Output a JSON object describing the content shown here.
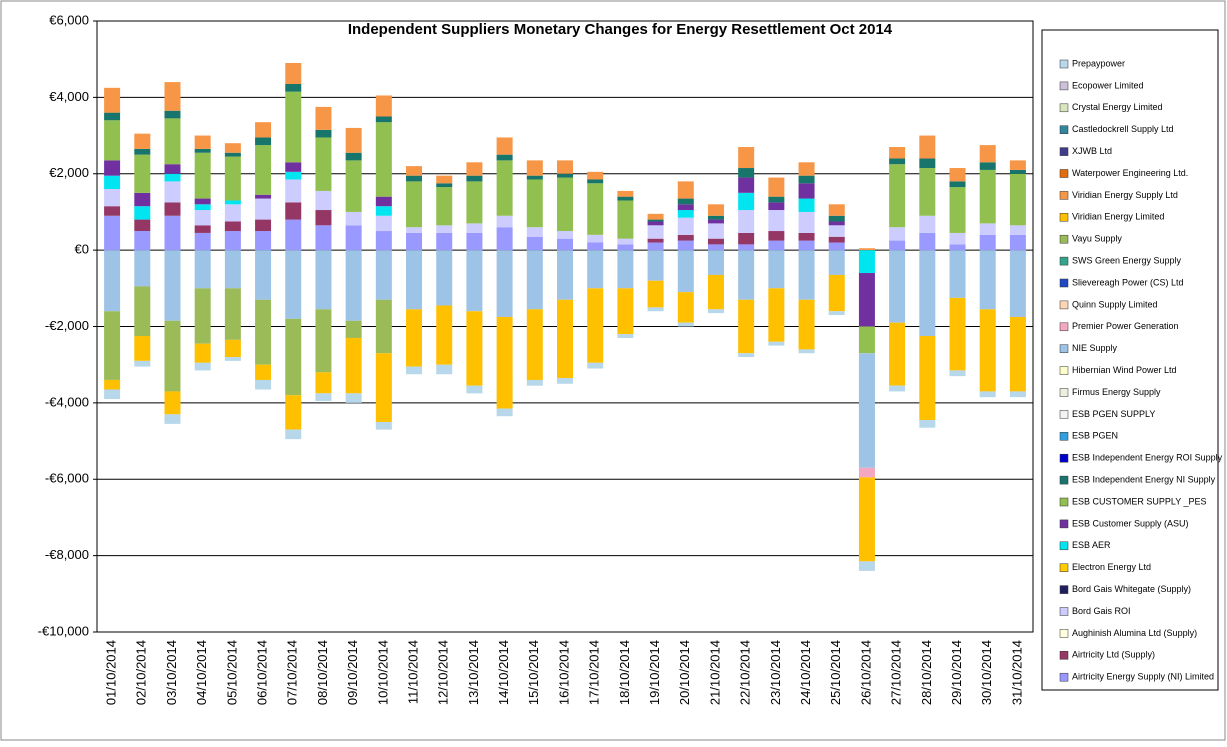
{
  "chart_data": {
    "type": "stacked-bar",
    "title": "Independent Suppliers Monetary Changes for Energy Resettlement Oct 2014",
    "categories": [
      "01/10/2014",
      "02/10/2014",
      "03/10/2014",
      "04/10/2014",
      "05/10/2014",
      "06/10/2014",
      "07/10/2014",
      "08/10/2014",
      "09/10/2014",
      "10/10/2014",
      "11/10/2014",
      "12/10/2014",
      "13/10/2014",
      "14/10/2014",
      "15/10/2014",
      "16/10/2014",
      "17/10/2014",
      "18/10/2014",
      "19/10/2014",
      "20/10/2014",
      "21/10/2014",
      "22/10/2014",
      "23/10/2014",
      "24/10/2014",
      "25/10/2014",
      "26/10/2014",
      "27/10/2014",
      "28/10/2014",
      "29/10/2014",
      "30/10/2014",
      "31/10/2014"
    ],
    "ylim": [
      -10000,
      6000
    ],
    "yticks": [
      {
        "value": -10000,
        "label": "-€10,000"
      },
      {
        "value": -8000,
        "label": "-€8,000"
      },
      {
        "value": -6000,
        "label": "-€6,000"
      },
      {
        "value": -4000,
        "label": "-€4,000"
      },
      {
        "value": -2000,
        "label": "-€2,000"
      },
      {
        "value": 0,
        "label": "€0"
      },
      {
        "value": 2000,
        "label": "€2,000"
      },
      {
        "value": 4000,
        "label": "€4,000"
      },
      {
        "value": 6000,
        "label": "€6,000"
      }
    ],
    "grid": true,
    "legend": "right",
    "series": [
      {
        "name": "Prepaypower",
        "color": "#b7d7ea",
        "values": [
          -250,
          -150,
          -250,
          -200,
          -100,
          -250,
          -250,
          -200,
          -250,
          -200,
          -200,
          -250,
          -200,
          -200,
          -150,
          -150,
          -150,
          -100,
          -100,
          -100,
          -100,
          -100,
          -100,
          -100,
          -100,
          -250,
          -150,
          -200,
          -150,
          -150,
          -150
        ]
      },
      {
        "name": "Ecopower Limited",
        "color": "#ccc0da",
        "values": [
          0,
          0,
          0,
          0,
          0,
          0,
          0,
          0,
          0,
          0,
          0,
          0,
          0,
          0,
          0,
          0,
          0,
          0,
          0,
          0,
          0,
          0,
          0,
          0,
          0,
          0,
          0,
          0,
          0,
          0,
          0
        ]
      },
      {
        "name": "Crystal Energy Limited",
        "color": "#d7e4bd",
        "values": [
          0,
          0,
          0,
          0,
          0,
          0,
          0,
          0,
          0,
          0,
          0,
          0,
          0,
          0,
          0,
          0,
          0,
          0,
          0,
          0,
          0,
          0,
          0,
          0,
          0,
          0,
          0,
          0,
          0,
          0,
          0
        ]
      },
      {
        "name": "Castledockrell Supply Ltd",
        "color": "#31859c",
        "values": [
          0,
          0,
          0,
          0,
          0,
          0,
          0,
          0,
          0,
          0,
          0,
          0,
          0,
          0,
          0,
          0,
          0,
          0,
          0,
          0,
          0,
          0,
          0,
          0,
          0,
          0,
          0,
          0,
          0,
          0,
          0
        ]
      },
      {
        "name": "XJWB Ltd",
        "color": "#403c8c",
        "values": [
          0,
          0,
          0,
          0,
          0,
          0,
          0,
          0,
          0,
          0,
          0,
          0,
          0,
          0,
          0,
          0,
          0,
          0,
          0,
          0,
          0,
          0,
          0,
          0,
          0,
          0,
          0,
          0,
          0,
          0,
          0
        ]
      },
      {
        "name": "Waterpower Engineering Ltd.",
        "color": "#e46c0a",
        "values": [
          0,
          0,
          0,
          0,
          0,
          0,
          0,
          0,
          0,
          0,
          0,
          0,
          0,
          0,
          0,
          0,
          0,
          0,
          0,
          0,
          0,
          0,
          0,
          0,
          0,
          0,
          0,
          0,
          0,
          0,
          0
        ]
      },
      {
        "name": "Viridian Energy Supply Ltd",
        "color": "#f79646",
        "values": [
          650,
          400,
          750,
          350,
          250,
          400,
          550,
          600,
          650,
          550,
          250,
          200,
          350,
          450,
          400,
          350,
          200,
          150,
          150,
          450,
          300,
          550,
          500,
          350,
          300,
          50,
          300,
          600,
          350,
          450,
          250
        ]
      },
      {
        "name": "Viridian Energy Limited",
        "color": "#ffc000",
        "values": [
          -250,
          -650,
          -600,
          -500,
          -450,
          -400,
          -900,
          -550,
          -1450,
          -1800,
          -1500,
          -1550,
          -1950,
          -2400,
          -1850,
          -2050,
          -1950,
          -1200,
          -700,
          -800,
          -900,
          -1400,
          -1400,
          -1300,
          -950,
          -2200,
          -1650,
          -2200,
          -1900,
          -2150,
          -1950
        ]
      },
      {
        "name": "Vayu Supply",
        "color": "#9bbb59",
        "values": [
          -1800,
          -1300,
          -1850,
          -1450,
          -1350,
          -1700,
          -2000,
          -1650,
          -450,
          -1400,
          0,
          0,
          0,
          0,
          0,
          0,
          0,
          0,
          0,
          0,
          0,
          0,
          0,
          0,
          0,
          0,
          0,
          0,
          0,
          0,
          0
        ]
      },
      {
        "name": "SWS Green Energy Supply",
        "color": "#33a58c",
        "values": [
          0,
          0,
          0,
          0,
          0,
          0,
          0,
          0,
          0,
          0,
          0,
          0,
          0,
          0,
          0,
          0,
          0,
          0,
          0,
          0,
          0,
          0,
          0,
          0,
          0,
          0,
          0,
          0,
          0,
          0,
          0
        ]
      },
      {
        "name": "Slievereagh Power (CS) Ltd",
        "color": "#1f49c4",
        "values": [
          0,
          0,
          0,
          0,
          0,
          0,
          0,
          0,
          0,
          0,
          0,
          0,
          0,
          0,
          0,
          0,
          0,
          0,
          0,
          0,
          0,
          0,
          0,
          0,
          0,
          0,
          0,
          0,
          0,
          0,
          0
        ]
      },
      {
        "name": "Quinn Supply Limited",
        "color": "#fcd5b4",
        "values": [
          0,
          0,
          0,
          0,
          0,
          0,
          0,
          0,
          0,
          0,
          0,
          0,
          0,
          0,
          0,
          0,
          0,
          0,
          0,
          0,
          0,
          0,
          0,
          0,
          0,
          0,
          0,
          0,
          0,
          0,
          0
        ]
      },
      {
        "name": "Premier Power Generation",
        "color": "#f4a7c0",
        "values": [
          0,
          0,
          0,
          0,
          0,
          0,
          0,
          0,
          0,
          0,
          0,
          0,
          0,
          0,
          0,
          0,
          0,
          0,
          0,
          0,
          0,
          0,
          0,
          0,
          0,
          -250,
          0,
          0,
          0,
          0,
          0
        ]
      },
      {
        "name": "NIE Supply",
        "color": "#9dc3e6",
        "values": [
          -1600,
          -950,
          -1850,
          -1000,
          -1000,
          -1300,
          -1800,
          -1550,
          -1850,
          -1300,
          -1550,
          -1450,
          -1600,
          -1750,
          -1550,
          -1300,
          -1000,
          -1000,
          -800,
          -1100,
          -650,
          -1300,
          -1000,
          -1300,
          -650,
          -3000,
          -1900,
          -2250,
          -1250,
          -1550,
          -1750
        ]
      },
      {
        "name": "Hibernian Wind Power Ltd",
        "color": "#ffffcc",
        "values": [
          0,
          0,
          0,
          0,
          0,
          0,
          0,
          0,
          0,
          0,
          0,
          0,
          0,
          0,
          0,
          0,
          0,
          0,
          0,
          0,
          0,
          0,
          0,
          0,
          0,
          0,
          0,
          0,
          0,
          0,
          0
        ]
      },
      {
        "name": "Firmus Energy Supply",
        "color": "#ebf1de",
        "values": [
          0,
          0,
          0,
          0,
          0,
          0,
          0,
          0,
          0,
          0,
          0,
          0,
          0,
          0,
          0,
          0,
          0,
          0,
          0,
          0,
          0,
          0,
          0,
          0,
          0,
          0,
          0,
          0,
          0,
          0,
          0
        ]
      },
      {
        "name": "ESB PGEN SUPPLY",
        "color": "#f2f2f2",
        "values": [
          0,
          0,
          0,
          0,
          0,
          0,
          0,
          0,
          0,
          0,
          0,
          0,
          0,
          0,
          0,
          0,
          0,
          0,
          0,
          0,
          0,
          0,
          0,
          0,
          0,
          0,
          0,
          0,
          0,
          0,
          0
        ]
      },
      {
        "name": "ESB PGEN",
        "color": "#31a0e0",
        "values": [
          0,
          0,
          0,
          0,
          0,
          0,
          0,
          0,
          0,
          0,
          0,
          0,
          0,
          0,
          0,
          0,
          0,
          0,
          0,
          0,
          0,
          0,
          0,
          0,
          0,
          0,
          0,
          0,
          0,
          0,
          0
        ]
      },
      {
        "name": "ESB Independent Energy ROI Supply",
        "color": "#0000cc",
        "values": [
          0,
          0,
          0,
          0,
          0,
          0,
          0,
          0,
          0,
          0,
          0,
          0,
          0,
          0,
          0,
          0,
          0,
          0,
          0,
          0,
          0,
          0,
          0,
          0,
          0,
          0,
          0,
          0,
          0,
          0,
          0
        ]
      },
      {
        "name": "ESB Independent Energy NI Supply",
        "color": "#17756b",
        "values": [
          200,
          150,
          200,
          100,
          100,
          200,
          200,
          200,
          200,
          150,
          150,
          100,
          150,
          150,
          100,
          100,
          100,
          100,
          50,
          150,
          100,
          250,
          150,
          200,
          150,
          0,
          150,
          250,
          150,
          200,
          100
        ]
      },
      {
        "name": "ESB CUSTOMER SUPPLY _PES",
        "color": "#92c050",
        "values": [
          1050,
          1000,
          1200,
          1200,
          1150,
          1300,
          1850,
          1400,
          1350,
          1950,
          1200,
          1000,
          1100,
          1450,
          1250,
          1400,
          1350,
          1000,
          0,
          0,
          0,
          0,
          0,
          0,
          0,
          -700,
          1650,
          1250,
          1200,
          1400,
          1350
        ]
      },
      {
        "name": "ESB Customer Supply (ASU)",
        "color": "#7030a0",
        "values": [
          400,
          350,
          250,
          150,
          0,
          100,
          250,
          0,
          0,
          250,
          0,
          0,
          0,
          0,
          0,
          0,
          0,
          0,
          100,
          150,
          100,
          400,
          200,
          400,
          100,
          -1400,
          0,
          0,
          0,
          0,
          0
        ]
      },
      {
        "name": "ESB AER",
        "color": "#00e5f0",
        "values": [
          350,
          350,
          200,
          150,
          100,
          0,
          200,
          0,
          0,
          250,
          0,
          0,
          0,
          0,
          0,
          0,
          0,
          0,
          0,
          200,
          0,
          450,
          0,
          350,
          0,
          -600,
          0,
          0,
          0,
          0,
          0
        ]
      },
      {
        "name": "Electron Energy Ltd",
        "color": "#ffcc00",
        "values": [
          0,
          0,
          0,
          0,
          0,
          0,
          0,
          0,
          0,
          0,
          0,
          0,
          0,
          0,
          0,
          0,
          0,
          0,
          0,
          0,
          0,
          0,
          0,
          0,
          0,
          0,
          0,
          0,
          0,
          0,
          0
        ]
      },
      {
        "name": "Bord Gais Whitegate (Supply)",
        "color": "#1f1f5f",
        "values": [
          0,
          0,
          0,
          0,
          0,
          0,
          0,
          0,
          0,
          0,
          0,
          0,
          0,
          0,
          0,
          0,
          0,
          0,
          0,
          0,
          0,
          0,
          0,
          0,
          0,
          0,
          0,
          0,
          0,
          0,
          0
        ]
      },
      {
        "name": "Bord Gais ROI",
        "color": "#ccccff",
        "values": [
          450,
          0,
          550,
          400,
          450,
          550,
          600,
          500,
          350,
          400,
          150,
          200,
          250,
          300,
          250,
          200,
          200,
          150,
          350,
          450,
          400,
          600,
          550,
          550,
          300,
          0,
          350,
          450,
          300,
          300,
          250
        ]
      },
      {
        "name": "Aughinish Alumina Ltd (Supply)",
        "color": "#ffffe0",
        "values": [
          0,
          0,
          0,
          0,
          0,
          0,
          0,
          0,
          0,
          0,
          0,
          0,
          0,
          0,
          0,
          0,
          0,
          0,
          0,
          0,
          0,
          0,
          0,
          0,
          0,
          0,
          0,
          0,
          0,
          0,
          0
        ]
      },
      {
        "name": "Airtricity Ltd (Supply)",
        "color": "#953765",
        "values": [
          250,
          300,
          350,
          200,
          250,
          300,
          450,
          400,
          0,
          0,
          0,
          0,
          0,
          0,
          0,
          0,
          0,
          0,
          100,
          150,
          150,
          300,
          250,
          200,
          150,
          0,
          0,
          0,
          0,
          0,
          0
        ]
      },
      {
        "name": "Airtricity Energy Supply (NI) Limited",
        "color": "#9999ff",
        "values": [
          900,
          500,
          900,
          450,
          500,
          500,
          800,
          650,
          650,
          500,
          450,
          450,
          450,
          600,
          350,
          300,
          200,
          150,
          200,
          250,
          150,
          150,
          250,
          250,
          200,
          0,
          250,
          450,
          150,
          400,
          400
        ]
      }
    ]
  }
}
